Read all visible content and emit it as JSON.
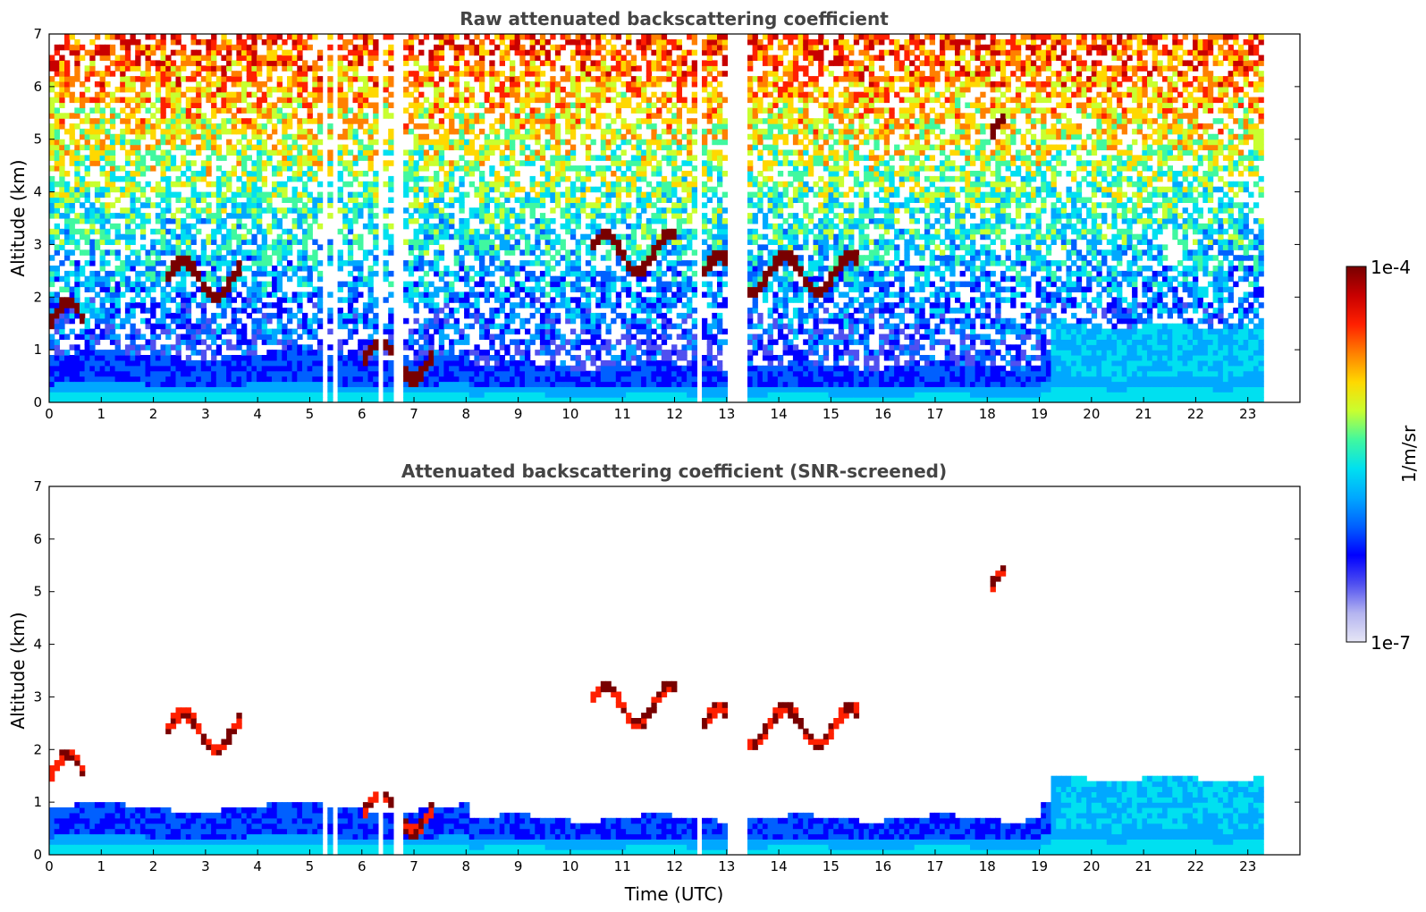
{
  "chart_data": [
    {
      "type": "heatmap",
      "title": "Raw attenuated backscattering coefficient",
      "xlabel": "",
      "ylabel": "Altitude (km)",
      "xlim": [
        0,
        24
      ],
      "ylim": [
        0,
        7
      ],
      "xticks": [
        "0",
        "1",
        "2",
        "3",
        "4",
        "5",
        "6",
        "7",
        "8",
        "9",
        "10",
        "11",
        "12",
        "13",
        "14",
        "15",
        "16",
        "17",
        "18",
        "19",
        "20",
        "21",
        "22",
        "23"
      ],
      "yticks": [
        "0",
        "1",
        "2",
        "3",
        "4",
        "5",
        "6",
        "7"
      ],
      "data_end_hour": 23.3,
      "gaps_utc": [
        5.15,
        5.25,
        5.4,
        5.5,
        6.25,
        6.4,
        6.6,
        6.7,
        12.4,
        12.5,
        13.0,
        13.35
      ],
      "features": {
        "boundary_layer_top_km": 0.8,
        "clouds": [
          {
            "t_start": 0.0,
            "t_end": 0.6,
            "alt_km": 1.5
          },
          {
            "t_start": 2.2,
            "t_end": 3.6,
            "alt_km": 2.3
          },
          {
            "t_start": 6.0,
            "t_end": 7.3,
            "alt_km": 0.75
          },
          {
            "t_start": 10.3,
            "t_end": 12.0,
            "alt_km": 2.8
          },
          {
            "t_start": 12.5,
            "t_end": 15.5,
            "alt_km": 2.4
          },
          {
            "t_start": 18.0,
            "t_end": 18.3,
            "alt_km": 5.0
          }
        ]
      }
    },
    {
      "type": "heatmap",
      "title": "Attenuated backscattering coefficient (SNR-screened)",
      "xlabel": "Time (UTC)",
      "ylabel": "Altitude (km)",
      "xlim": [
        0,
        24
      ],
      "ylim": [
        0,
        7
      ],
      "xticks": [
        "0",
        "1",
        "2",
        "3",
        "4",
        "5",
        "6",
        "7",
        "8",
        "9",
        "10",
        "11",
        "12",
        "13",
        "14",
        "15",
        "16",
        "17",
        "18",
        "19",
        "20",
        "21",
        "22",
        "23"
      ],
      "yticks": [
        "0",
        "1",
        "2",
        "3",
        "4",
        "5",
        "6",
        "7"
      ],
      "data_end_hour": 23.3
    }
  ],
  "colorbar": {
    "label": "1/m/sr",
    "max_label": "1e-4",
    "min_label": "1e-7",
    "colors": [
      "#e6e6f5",
      "#b4b4f0",
      "#5050f0",
      "#0000ff",
      "#0060ff",
      "#00a8ff",
      "#00e0f0",
      "#40f8a0",
      "#c8ff30",
      "#ffd800",
      "#ff8000",
      "#ff2000",
      "#c80000",
      "#780000"
    ]
  }
}
